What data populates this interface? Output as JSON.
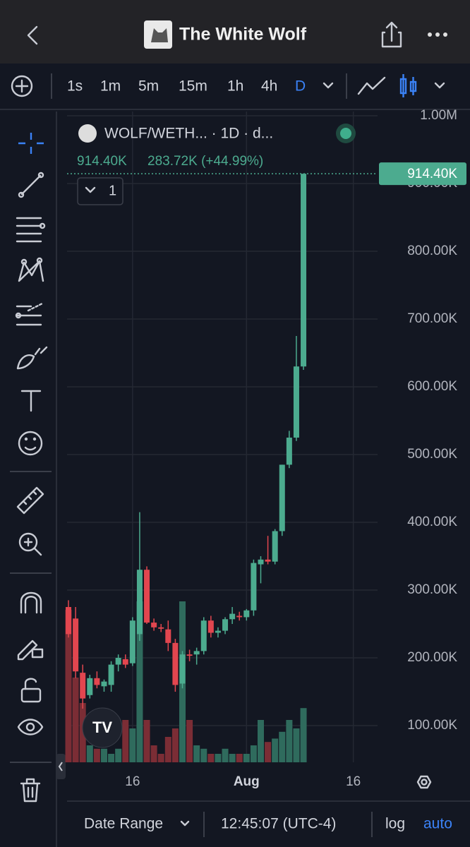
{
  "header": {
    "title": "The White Wolf"
  },
  "toolbar": {
    "intervals": [
      "1s",
      "1m",
      "5m",
      "15m",
      "1h",
      "4h",
      "D"
    ]
  },
  "legend": {
    "symbol": "WOLF/WETH... · 1D · d...",
    "last": "914.40K",
    "change": "283.72K (+44.99%)",
    "collapse": "1"
  },
  "chart_data": {
    "type": "candlestick",
    "categories": [
      null,
      null,
      null,
      null,
      null,
      null,
      null,
      null,
      null,
      null,
      null,
      null,
      null,
      null,
      null,
      null,
      null,
      null,
      null,
      null,
      null,
      null,
      null,
      null,
      null,
      null,
      null,
      null,
      null,
      null,
      null,
      null,
      null,
      null
    ],
    "open": [
      275000,
      258000,
      178000,
      145000,
      170000,
      158000,
      160000,
      190000,
      198000,
      192000,
      235000,
      330000,
      252000,
      245000,
      242000,
      222000,
      162000,
      205000,
      205000,
      210000,
      255000,
      237000,
      240000,
      257000,
      262000,
      260000,
      270000,
      338000,
      345000,
      342000,
      387000,
      485000,
      525000,
      630000
    ],
    "high": [
      285000,
      275000,
      190000,
      175000,
      180000,
      168000,
      195000,
      205000,
      205000,
      260000,
      415000,
      335000,
      258000,
      250000,
      255000,
      228000,
      210000,
      212000,
      215000,
      260000,
      262000,
      245000,
      260000,
      275000,
      268000,
      272000,
      345000,
      350000,
      380000,
      390000,
      485000,
      535000,
      675000,
      914400
    ],
    "low": [
      230000,
      170000,
      125000,
      140000,
      155000,
      150000,
      150000,
      180000,
      185000,
      188000,
      225000,
      250000,
      240000,
      238000,
      210000,
      150000,
      155000,
      195000,
      190000,
      205000,
      230000,
      230000,
      235000,
      250000,
      255000,
      255000,
      262000,
      310000,
      338000,
      338000,
      380000,
      480000,
      520000,
      625000
    ],
    "close": [
      235000,
      180000,
      140000,
      170000,
      160000,
      165000,
      190000,
      200000,
      190000,
      255000,
      330000,
      252000,
      245000,
      243000,
      222000,
      160000,
      205000,
      203000,
      210000,
      255000,
      237000,
      240000,
      257000,
      265000,
      260000,
      270000,
      340000,
      345000,
      342000,
      387000,
      485000,
      525000,
      630000,
      914400
    ],
    "volume": [
      90,
      50,
      35,
      10,
      8,
      8,
      5,
      8,
      25,
      20,
      95,
      25,
      10,
      5,
      15,
      20,
      95,
      25,
      10,
      8,
      5,
      5,
      8,
      5,
      5,
      5,
      10,
      25,
      12,
      14,
      18,
      25,
      20,
      32
    ],
    "volume_lim": [
      0,
      100
    ],
    "up_color": "#4cab8f",
    "down_color": "#e2464f",
    "up_volume_color": "#2f6b5d",
    "down_volume_color": "#7b2d35",
    "xlim": [
      -0.2,
      43.4
    ],
    "xticks": [
      {
        "value": 9,
        "label": "16"
      },
      {
        "value": 25,
        "label": "Aug"
      },
      {
        "value": 40,
        "label": "16"
      }
    ],
    "ylim": [
      45833,
      1006250
    ],
    "yticks": [
      {
        "value": 100000,
        "label": "100.00K"
      },
      {
        "value": 200000,
        "label": "200.00K"
      },
      {
        "value": 300000,
        "label": "300.00K"
      },
      {
        "value": 400000,
        "label": "400.00K"
      },
      {
        "value": 500000,
        "label": "500.00K"
      },
      {
        "value": 600000,
        "label": "600.00K"
      },
      {
        "value": 700000,
        "label": "700.00K"
      },
      {
        "value": 800000,
        "label": "800.00K"
      },
      {
        "value": 900000,
        "label": "900.00K"
      },
      {
        "value": 1000000,
        "label": "1.00M"
      }
    ],
    "last_price": {
      "value": 914400,
      "label": "914.40K"
    },
    "grid": true
  },
  "footer": {
    "date_range": "Date Range",
    "time": "12:45:07 (UTC-4)",
    "log": "log",
    "auto": "auto"
  }
}
